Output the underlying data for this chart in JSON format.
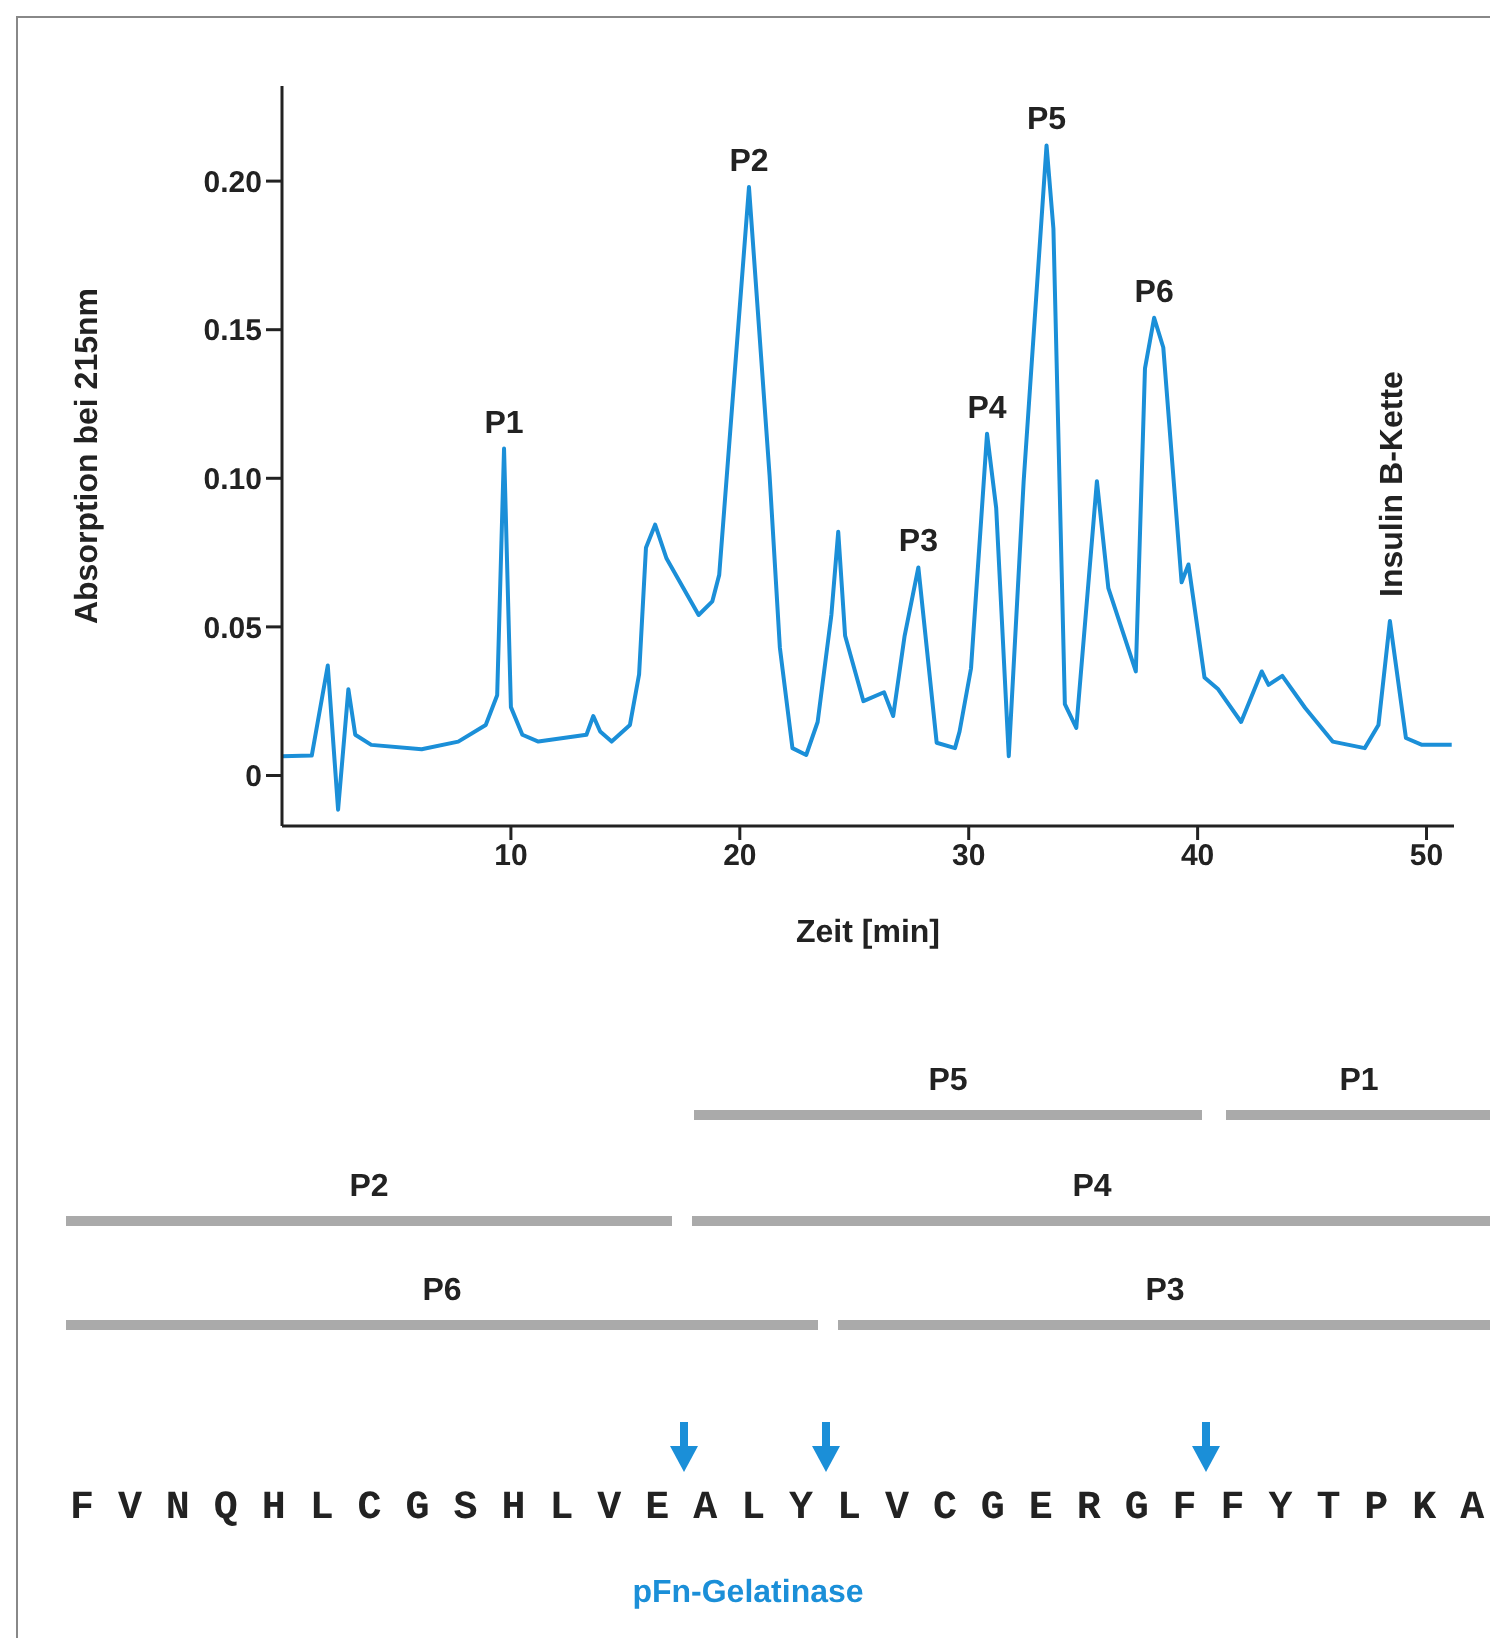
{
  "chart_data": {
    "type": "line",
    "xlabel": "Zeit [min]",
    "ylabel": "Absorption bei 215nm",
    "xlim": [
      0,
      51.2
    ],
    "ylim": [
      -0.017,
      0.232
    ],
    "xticks": [
      10,
      20,
      30,
      40,
      50
    ],
    "yticks": [
      0,
      0.05,
      {
        "value": 0.1,
        "label": "0.10"
      },
      0.15,
      {
        "value": 0.2,
        "label": "0.20"
      }
    ],
    "marker": "none",
    "line_style": "solid",
    "series": [
      {
        "color": "#1b8fd8",
        "x": [
          0,
          1.3,
          2.0,
          2.45,
          2.9,
          3.2,
          3.9,
          6.1,
          7.7,
          8.9,
          9.4,
          9.7,
          10.0,
          10.5,
          11.2,
          13.3,
          13.6,
          13.9,
          14.4,
          15.2,
          15.6,
          15.9,
          16.3,
          16.8,
          18.2,
          18.8,
          19.1,
          20.4,
          21.3,
          21.75,
          22.3,
          22.9,
          23.4,
          24.0,
          24.3,
          24.6,
          25.4,
          26.3,
          26.7,
          27.2,
          27.8,
          28.6,
          29.4,
          29.6,
          30.1,
          30.8,
          31.2,
          31.75,
          32.4,
          33.4,
          33.7,
          34.2,
          34.7,
          35.6,
          36.1,
          37.3,
          37.7,
          38.1,
          38.5,
          39.3,
          39.6,
          40.3,
          40.9,
          41.9,
          42.8,
          43.1,
          43.7,
          44.7,
          45.9,
          47.3,
          47.9,
          48.4,
          49.1,
          49.8,
          51.1
        ],
        "values": [
          0.0065,
          0.0067,
          0.037,
          -0.0115,
          0.029,
          0.0137,
          0.0103,
          0.0088,
          0.0114,
          0.017,
          0.027,
          0.11,
          0.023,
          0.0137,
          0.0114,
          0.0137,
          0.02,
          0.0148,
          0.0114,
          0.017,
          0.034,
          0.0766,
          0.0844,
          0.073,
          0.054,
          0.0586,
          0.0675,
          0.198,
          0.101,
          0.043,
          0.0092,
          0.0069,
          0.018,
          0.054,
          0.082,
          0.047,
          0.025,
          0.028,
          0.02,
          0.047,
          0.07,
          0.011,
          0.0092,
          0.0148,
          0.036,
          0.115,
          0.09,
          0.0065,
          0.099,
          0.212,
          0.184,
          0.024,
          0.016,
          0.099,
          0.063,
          0.035,
          0.137,
          0.154,
          0.144,
          0.065,
          0.071,
          0.033,
          0.029,
          0.018,
          0.035,
          0.0305,
          0.0335,
          0.0227,
          0.0114,
          0.0092,
          0.017,
          0.052,
          0.0126,
          0.0103,
          0.0103
        ]
      }
    ],
    "annotations": [
      {
        "text": "P1",
        "x": 9.7,
        "y": 0.11
      },
      {
        "text": "P2",
        "x": 20.4,
        "y": 0.198
      },
      {
        "text": "P3",
        "x": 27.8,
        "y": 0.07
      },
      {
        "text": "P4",
        "x": 30.8,
        "y": 0.115
      },
      {
        "text": "P5",
        "x": 33.4,
        "y": 0.212
      },
      {
        "text": "P6",
        "x": 38.1,
        "y": 0.154
      },
      {
        "text": "Insulin B-Kette",
        "x": 48.4,
        "y": 0.052
      },
      "P5",
      "P1",
      "P2",
      "P4",
      "P6",
      "P3",
      "F V N Q H L C G S H L V E A L Y L V C G E R G F F Y T P K A",
      "pFn-Gelatinase"
    ]
  }
}
